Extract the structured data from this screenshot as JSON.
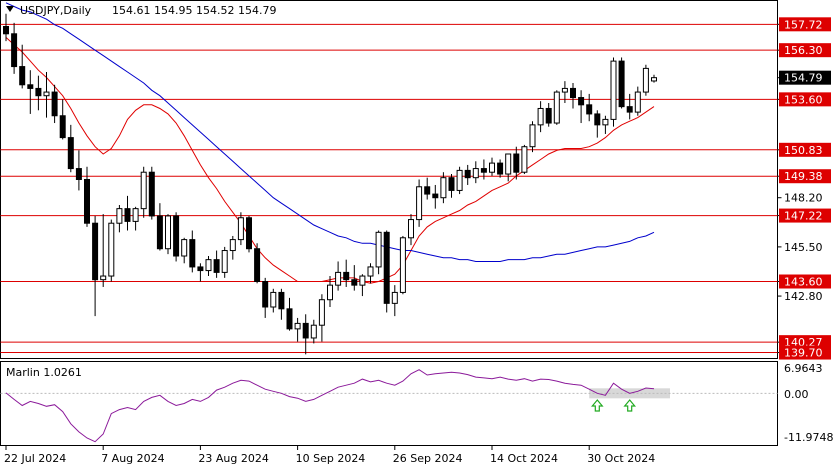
{
  "header": {
    "symbol": "USDJPY,Daily",
    "ohlc": "154.61 154.95 154.52 154.79"
  },
  "indicator": {
    "name": "Marlin 1.0261",
    "tick_top": "6.9643",
    "tick_zero": "0.00",
    "tick_bottom": "-11.9748"
  },
  "chart_data": [
    {
      "type": "candlestick",
      "title": "USDJPY,Daily",
      "ohlc_last": {
        "open": 154.61,
        "high": 154.95,
        "low": 154.52,
        "close": 154.79
      },
      "ylim": [
        139.4,
        159.0
      ],
      "y_ticks": [
        157.72,
        156.3,
        154.79,
        153.6,
        150.83,
        149.38,
        148.2,
        147.22,
        145.5,
        143.6,
        142.8,
        140.27,
        139.7
      ],
      "y_tick_labels": [
        "157.72",
        "156.30",
        "154.79",
        "153.60",
        "150.83",
        "149.38",
        "148.20",
        "147.22",
        "145.50",
        "143.60",
        "142.80",
        "140.27",
        "139.70"
      ],
      "level_lines": [
        157.72,
        156.3,
        153.6,
        150.83,
        149.38,
        147.22,
        143.6,
        140.27,
        139.7
      ],
      "current_price": 154.79,
      "x_tick_labels": [
        "22 Jul 2024",
        "7 Aug 2024",
        "23 Aug 2024",
        "10 Sep 2024",
        "26 Sep 2024",
        "14 Oct 2024",
        "30 Oct 2024"
      ],
      "x_tick_index": [
        0,
        12,
        24,
        36,
        48,
        60,
        72
      ],
      "candles": [
        [
          157.6,
          158.3,
          156.8,
          157.2
        ],
        [
          157.2,
          157.8,
          155.0,
          155.4
        ],
        [
          155.4,
          156.6,
          154.2,
          154.4
        ],
        [
          154.4,
          155.2,
          152.8,
          154.2
        ],
        [
          154.2,
          154.9,
          153.0,
          153.8
        ],
        [
          153.8,
          155.1,
          152.6,
          154.0
        ],
        [
          154.0,
          154.4,
          152.3,
          152.7
        ],
        [
          152.7,
          153.6,
          151.4,
          151.5
        ],
        [
          151.5,
          152.2,
          149.6,
          149.8
        ],
        [
          149.8,
          150.8,
          148.6,
          149.2
        ],
        [
          149.2,
          149.9,
          146.6,
          146.8
        ],
        [
          146.8,
          147.2,
          141.7,
          143.7
        ],
        [
          143.7,
          147.3,
          143.3,
          143.9
        ],
        [
          143.9,
          147.0,
          143.6,
          146.8
        ],
        [
          146.8,
          147.8,
          146.3,
          147.6
        ],
        [
          147.6,
          148.3,
          146.4,
          146.9
        ],
        [
          146.9,
          147.7,
          146.4,
          147.6
        ],
        [
          147.6,
          149.9,
          147.1,
          149.6
        ],
        [
          149.6,
          149.9,
          147.0,
          147.2
        ],
        [
          147.2,
          147.9,
          145.3,
          145.4
        ],
        [
          145.4,
          147.3,
          145.1,
          147.2
        ],
        [
          147.2,
          147.4,
          144.7,
          145.0
        ],
        [
          145.0,
          146.0,
          144.6,
          145.9
        ],
        [
          145.9,
          146.4,
          144.1,
          144.4
        ],
        [
          144.4,
          144.6,
          143.6,
          144.2
        ],
        [
          144.2,
          145.0,
          143.9,
          144.8
        ],
        [
          144.8,
          145.3,
          143.8,
          144.1
        ],
        [
          144.1,
          145.5,
          143.8,
          145.3
        ],
        [
          145.3,
          146.1,
          144.8,
          145.9
        ],
        [
          145.9,
          147.4,
          145.6,
          147.1
        ],
        [
          147.1,
          147.2,
          145.2,
          145.4
        ],
        [
          145.4,
          145.7,
          143.5,
          143.6
        ],
        [
          143.6,
          143.8,
          141.6,
          142.2
        ],
        [
          142.2,
          143.2,
          141.9,
          143.0
        ],
        [
          143.0,
          143.2,
          141.5,
          142.1
        ],
        [
          142.1,
          142.7,
          140.9,
          141.0
        ],
        [
          141.0,
          141.6,
          140.3,
          141.3
        ],
        [
          141.3,
          141.8,
          139.6,
          140.5
        ],
        [
          140.5,
          141.5,
          140.2,
          141.2
        ],
        [
          141.2,
          142.9,
          140.3,
          142.6
        ],
        [
          142.6,
          143.9,
          142.2,
          143.4
        ],
        [
          143.4,
          144.7,
          143.1,
          144.1
        ],
        [
          144.1,
          144.8,
          143.3,
          143.7
        ],
        [
          143.7,
          144.5,
          143.1,
          143.4
        ],
        [
          143.4,
          144.0,
          142.8,
          143.9
        ],
        [
          143.9,
          144.6,
          143.5,
          144.4
        ],
        [
          144.4,
          146.4,
          144.0,
          146.3
        ],
        [
          146.3,
          146.4,
          141.9,
          142.4
        ],
        [
          142.4,
          143.4,
          141.7,
          143.0
        ],
        [
          143.0,
          146.1,
          142.9,
          146.0
        ],
        [
          146.0,
          147.3,
          145.6,
          147.0
        ],
        [
          147.0,
          149.2,
          146.6,
          148.8
        ],
        [
          148.8,
          149.3,
          148.1,
          148.4
        ],
        [
          148.4,
          148.9,
          147.6,
          148.2
        ],
        [
          148.2,
          149.6,
          147.9,
          149.3
        ],
        [
          149.3,
          149.5,
          148.2,
          148.6
        ],
        [
          148.6,
          149.9,
          148.4,
          149.7
        ],
        [
          149.7,
          150.0,
          148.9,
          149.3
        ],
        [
          149.3,
          150.2,
          149.0,
          149.8
        ],
        [
          149.8,
          150.3,
          149.2,
          149.6
        ],
        [
          149.6,
          150.4,
          149.4,
          150.1
        ],
        [
          150.1,
          150.3,
          149.3,
          149.5
        ],
        [
          149.5,
          150.5,
          149.1,
          150.6
        ],
        [
          150.6,
          151.0,
          149.2,
          149.6
        ],
        [
          149.6,
          151.1,
          149.5,
          151.0
        ],
        [
          151.0,
          152.4,
          150.7,
          152.2
        ],
        [
          152.2,
          153.5,
          151.8,
          153.1
        ],
        [
          153.1,
          153.4,
          152.1,
          152.3
        ],
        [
          152.3,
          154.1,
          152.2,
          154.0
        ],
        [
          154.0,
          154.6,
          153.4,
          154.2
        ],
        [
          154.2,
          154.5,
          153.1,
          153.7
        ],
        [
          153.7,
          154.1,
          152.3,
          153.3
        ],
        [
          153.3,
          153.9,
          152.4,
          152.8
        ],
        [
          152.8,
          153.0,
          151.5,
          152.2
        ],
        [
          152.2,
          152.7,
          151.7,
          152.5
        ],
        [
          152.5,
          155.9,
          152.1,
          155.7
        ],
        [
          155.7,
          155.9,
          153.1,
          153.2
        ],
        [
          153.2,
          153.9,
          152.5,
          152.9
        ],
        [
          152.9,
          154.3,
          152.7,
          154.0
        ],
        [
          154.0,
          155.5,
          153.8,
          155.3
        ],
        [
          154.61,
          154.95,
          154.52,
          154.79
        ]
      ],
      "series": [
        {
          "values": [
            157.0,
            156.6,
            156.2,
            155.7,
            155.2,
            154.8,
            154.3,
            153.8,
            153.1,
            152.3,
            151.6,
            151.0,
            150.6,
            150.9,
            151.6,
            152.5,
            153.0,
            153.3,
            153.3,
            153.1,
            152.8,
            152.3,
            151.6,
            150.8,
            150.0,
            149.3,
            148.7,
            148.0,
            147.4,
            146.8,
            146.1,
            145.4,
            144.9,
            144.5,
            144.2,
            143.9,
            143.6,
            143.6,
            143.6,
            143.6,
            143.7,
            143.8,
            143.8,
            143.8,
            143.6,
            143.5,
            143.6,
            143.8,
            144.0,
            144.5,
            145.3,
            146.1,
            146.6,
            146.9,
            147.1,
            147.3,
            147.5,
            147.8,
            148.0,
            148.3,
            148.6,
            148.8,
            149.0,
            149.4,
            149.7,
            150.0,
            150.3,
            150.6,
            150.8,
            150.9,
            150.9,
            150.9,
            151.0,
            151.2,
            151.5,
            151.9,
            152.2,
            152.4,
            152.6,
            152.9,
            153.2
          ]
        },
        {
          "values": [
            158.9,
            158.7,
            158.5,
            158.4,
            158.2,
            158.0,
            157.7,
            157.5,
            157.2,
            156.9,
            156.6,
            156.3,
            156.0,
            155.7,
            155.4,
            155.1,
            154.8,
            154.5,
            154.1,
            153.8,
            153.4,
            153.0,
            152.6,
            152.2,
            151.8,
            151.4,
            151.0,
            150.6,
            150.2,
            149.8,
            149.4,
            149.0,
            148.6,
            148.2,
            147.9,
            147.6,
            147.3,
            147.0,
            146.7,
            146.5,
            146.3,
            146.1,
            146.0,
            145.8,
            145.7,
            145.7,
            145.6,
            145.5,
            145.4,
            145.3,
            145.3,
            145.2,
            145.1,
            145.0,
            144.9,
            144.9,
            144.8,
            144.8,
            144.7,
            144.7,
            144.7,
            144.7,
            144.8,
            144.8,
            144.8,
            144.9,
            144.9,
            145.0,
            145.1,
            145.1,
            145.2,
            145.3,
            145.4,
            145.5,
            145.5,
            145.6,
            145.7,
            145.8,
            146.0,
            146.1,
            146.3
          ]
        }
      ]
    },
    {
      "type": "line",
      "title": "Marlin 1.0261",
      "ylim": [
        -11.9748,
        6.9643
      ],
      "y_tick_labels": [
        "6.9643",
        "0.00",
        "-11.9748"
      ],
      "values": [
        0.1,
        -1.5,
        -3.0,
        -2.0,
        -2.5,
        -3.2,
        -2.8,
        -4.5,
        -7.5,
        -9.5,
        -11.0,
        -11.9,
        -10.0,
        -5.0,
        -4.0,
        -3.5,
        -4.0,
        -2.0,
        -1.0,
        -0.5,
        -2.0,
        -3.0,
        -2.5,
        -1.5,
        -2.0,
        -1.0,
        0.8,
        1.5,
        2.5,
        3.2,
        3.0,
        2.0,
        1.0,
        0.5,
        0.0,
        -0.8,
        -1.2,
        -2.0,
        -1.5,
        -0.5,
        0.5,
        1.5,
        2.0,
        2.5,
        3.5,
        2.8,
        3.2,
        2.5,
        2.0,
        3.0,
        4.8,
        5.8,
        4.5,
        4.8,
        5.0,
        5.2,
        5.0,
        4.6,
        4.0,
        3.8,
        3.6,
        4.0,
        3.5,
        3.2,
        3.6,
        3.0,
        3.5,
        3.4,
        3.0,
        2.5,
        2.2,
        2.0,
        1.0,
        0.0,
        -0.5,
        2.5,
        1.0,
        0.0,
        0.5,
        1.3,
        1.1
      ],
      "arrows_at_index": [
        73,
        77
      ]
    }
  ]
}
